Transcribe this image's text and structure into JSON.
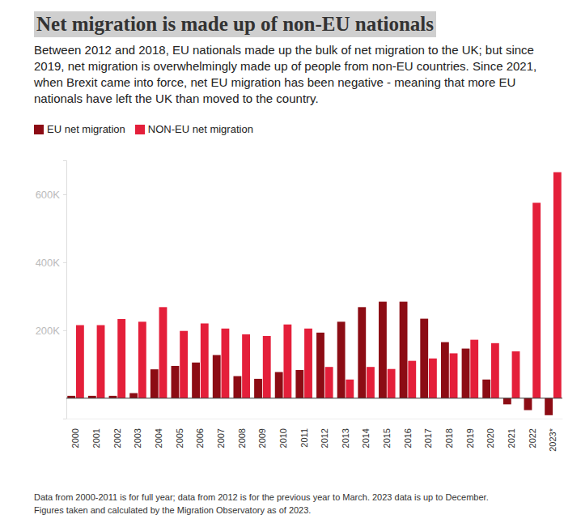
{
  "chart_data": {
    "type": "bar",
    "title": "Net migration is made up of non-EU nationals",
    "subtitle": "Between 2012 and 2018, EU nationals made up the bulk of net migration to the UK; but since 2019, net migration is overwhelmingly made up of people from non-EU countries. Since 2021, when Brexit came into force, net EU migration has been negative - meaning that more EU nationals have left the UK than moved to the country.",
    "footnote": [
      "Data from 2000-2011 is for full year; data from 2012 is for the previous year to March. 2023 data is up to December.",
      "Figures taken and calculated by the Migration Observatory as of 2023."
    ],
    "categories": [
      "2000",
      "2001",
      "2002",
      "2003",
      "2004",
      "2005",
      "2006",
      "2007",
      "2008",
      "2009",
      "2010",
      "2011",
      "2012",
      "2013",
      "2014",
      "2015",
      "2016",
      "2017",
      "2018",
      "2019",
      "2020",
      "2021",
      "2022",
      "2023*"
    ],
    "series": [
      {
        "name": "EU net migration",
        "color": "#8c0c14",
        "values": [
          7000,
          7000,
          7000,
          15000,
          85000,
          95000,
          105000,
          127000,
          65000,
          57000,
          77000,
          83000,
          193000,
          225000,
          268000,
          284000,
          284000,
          234000,
          165000,
          146000,
          55000,
          -18000,
          -35000,
          -50000
        ]
      },
      {
        "name": "NON-EU net migration",
        "color": "#e41f3a",
        "values": [
          215000,
          215000,
          233000,
          225000,
          268000,
          198000,
          220000,
          205000,
          188000,
          183000,
          217000,
          205000,
          92000,
          55000,
          92000,
          86000,
          110000,
          117000,
          132000,
          172000,
          162000,
          138000,
          575000,
          665000
        ]
      }
    ],
    "ylim": [
      -60000,
      700000
    ],
    "yticks": [
      {
        "value": 200000,
        "label": "200K"
      },
      {
        "value": 400000,
        "label": "400K"
      },
      {
        "value": 600000,
        "label": "600K"
      }
    ],
    "grid": false,
    "legend": "top-left"
  }
}
